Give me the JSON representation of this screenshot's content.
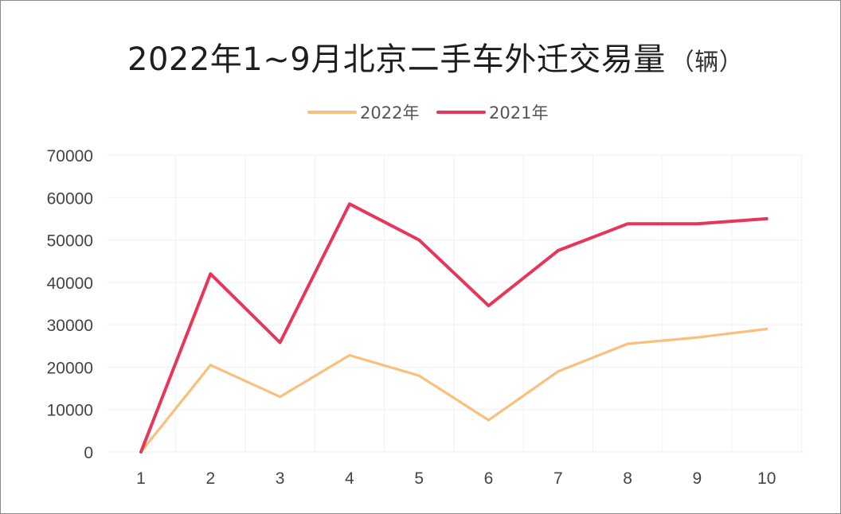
{
  "chart_data": {
    "type": "line",
    "title": "2022年1~9月北京二手车外迁交易量",
    "unit": "（辆）",
    "xlabel": "",
    "ylabel": "",
    "categories": [
      "1",
      "2",
      "3",
      "4",
      "5",
      "6",
      "7",
      "8",
      "9",
      "10"
    ],
    "ylim": [
      0,
      70000
    ],
    "yticks": [
      "0",
      "10000",
      "20000",
      "30000",
      "40000",
      "50000",
      "60000",
      "70000"
    ],
    "grid": true,
    "legend_position": "top-center",
    "series": [
      {
        "name": "2022年",
        "color": "#f9c07d",
        "values": [
          0,
          20500,
          13000,
          22800,
          18000,
          7500,
          19000,
          25500,
          27000,
          29000
        ]
      },
      {
        "name": "2021年",
        "color": "#e8365a",
        "values": [
          0,
          42000,
          25800,
          58500,
          50000,
          34500,
          47500,
          53800,
          53800,
          55000
        ]
      }
    ]
  }
}
